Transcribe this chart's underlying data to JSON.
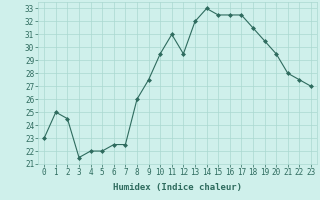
{
  "x": [
    0,
    1,
    2,
    3,
    4,
    5,
    6,
    7,
    8,
    9,
    10,
    11,
    12,
    13,
    14,
    15,
    16,
    17,
    18,
    19,
    20,
    21,
    22,
    23
  ],
  "y": [
    23,
    25,
    24.5,
    21.5,
    22,
    22,
    22.5,
    22.5,
    26,
    27.5,
    29.5,
    31,
    29.5,
    32,
    33,
    32.5,
    32.5,
    32.5,
    31.5,
    30.5,
    29.5,
    28,
    27.5,
    27
  ],
  "line_color": "#2e6b5e",
  "marker": "D",
  "marker_size": 2,
  "bg_color": "#cff0eb",
  "grid_color": "#aad8d0",
  "xlabel": "Humidex (Indice chaleur)",
  "ylim": [
    21,
    33.5
  ],
  "xlim": [
    -0.5,
    23.5
  ],
  "yticks": [
    21,
    22,
    23,
    24,
    25,
    26,
    27,
    28,
    29,
    30,
    31,
    32,
    33
  ],
  "xticks": [
    0,
    1,
    2,
    3,
    4,
    5,
    6,
    7,
    8,
    9,
    10,
    11,
    12,
    13,
    14,
    15,
    16,
    17,
    18,
    19,
    20,
    21,
    22,
    23
  ],
  "tick_color": "#2e6b5e",
  "tick_fontsize": 5.5,
  "xlabel_fontsize": 6.5,
  "linewidth": 0.8
}
